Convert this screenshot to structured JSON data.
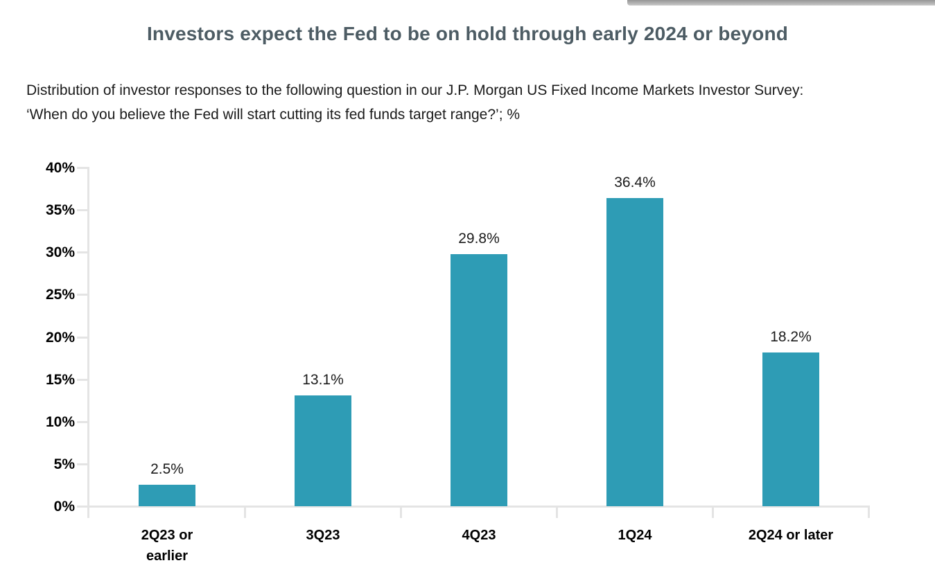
{
  "page": {
    "background": "#ffffff",
    "top_right_strip_color": "#a8a8a8"
  },
  "header": {
    "title": "Investors expect the Fed to be on hold through early 2024 or beyond",
    "title_color": "#4d5c64",
    "subtitle_line1": "Distribution of investor responses to the following question in our J.P. Morgan US Fixed Income Markets Investor Survey:",
    "subtitle_line2": "‘When do you believe the Fed will start cutting its fed funds target range?’; %"
  },
  "chart_data": {
    "type": "bar",
    "title": "Investors expect the Fed to be on hold through early 2024 or beyond",
    "categories": [
      "2Q23 or earlier",
      "3Q23",
      "4Q23",
      "1Q24",
      "2Q24 or later"
    ],
    "category_display": [
      "2Q23 or\nearlier",
      "3Q23",
      "4Q23",
      "1Q24",
      "2Q24 or later"
    ],
    "values": [
      2.5,
      13.1,
      29.8,
      36.4,
      18.2
    ],
    "value_labels": [
      "2.5%",
      "13.1%",
      "29.8%",
      "36.4%",
      "18.2%"
    ],
    "xlabel": "",
    "ylabel": "",
    "ylim": [
      0,
      40
    ],
    "ytick_step": 5,
    "ytick_labels": [
      "0%",
      "5%",
      "10%",
      "15%",
      "20%",
      "25%",
      "30%",
      "35%",
      "40%"
    ],
    "grid": false,
    "legend": "none",
    "bar_color": "#2e9cb5",
    "axis_color": "#e4e4e4",
    "label_color": "#1a1a1a"
  }
}
